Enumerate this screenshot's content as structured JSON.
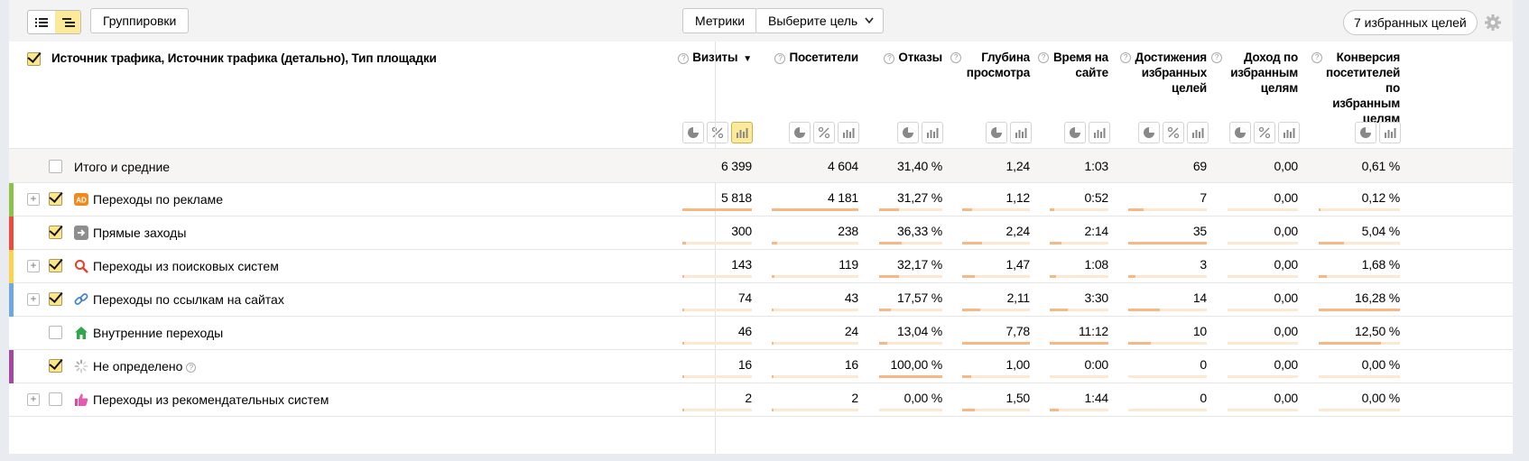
{
  "toolbar": {
    "groupings_label": "Группировки",
    "metrics_label": "Метрики",
    "goal_select_label": "Выберите цель",
    "favorite_goals_label": "7 избранных целей"
  },
  "header": {
    "dimension_title": "Источник трафика, Источник трафика (детально), Тип площадки",
    "sort_arrow": "▼",
    "help_glyph": "?",
    "columns": [
      {
        "label": "Визиты",
        "key": "visits"
      },
      {
        "label": "Посетители",
        "key": "visitors"
      },
      {
        "label": "Отказы",
        "key": "bounces"
      },
      {
        "label": "Глубина просмотра",
        "key": "depth"
      },
      {
        "label": "Время на сайте",
        "key": "time"
      },
      {
        "label": "Достижения избранных целей",
        "key": "goal_reaches"
      },
      {
        "label": "Доход по избранным целям",
        "key": "revenue"
      },
      {
        "label": "Конверсия посетителей по избранным целям",
        "key": "conversion"
      }
    ]
  },
  "total": {
    "label": "Итого и средние",
    "values": [
      "6 399",
      "4 604",
      "31,40 %",
      "1,24",
      "1:03",
      "69",
      "0,00",
      "0,61 %"
    ]
  },
  "rows": [
    {
      "label": "Переходы по рекламе",
      "icon": "ad-icon",
      "color": "#8bc34a",
      "expandable": true,
      "checked": true,
      "values": [
        "5 818",
        "4 181",
        "31,27 %",
        "1,12",
        "0:52",
        "7",
        "0,00",
        "0,12 %"
      ],
      "fill": [
        1.0,
        1.0,
        0.31,
        0.14,
        0.08,
        0.2,
        0,
        0.01
      ]
    },
    {
      "label": "Прямые заходы",
      "icon": "arrow-right-icon",
      "color": "#ef4b3f",
      "expandable": false,
      "checked": true,
      "values": [
        "300",
        "238",
        "36,33 %",
        "2,24",
        "2:14",
        "35",
        "0,00",
        "5,04 %"
      ],
      "fill": [
        0.05,
        0.06,
        0.36,
        0.29,
        0.2,
        1.0,
        0,
        0.31
      ]
    },
    {
      "label": "Переходы из поисковых систем",
      "icon": "search-icon",
      "color": "#fdd34e",
      "expandable": true,
      "checked": true,
      "values": [
        "143",
        "119",
        "32,17 %",
        "1,47",
        "1:08",
        "3",
        "0,00",
        "1,68 %"
      ],
      "fill": [
        0.03,
        0.03,
        0.32,
        0.19,
        0.1,
        0.09,
        0,
        0.1
      ]
    },
    {
      "label": "Переходы по ссылкам на сайтах",
      "icon": "link-icon",
      "color": "#6da8e2",
      "expandable": true,
      "checked": true,
      "values": [
        "74",
        "43",
        "17,57 %",
        "2,11",
        "3:30",
        "14",
        "0,00",
        "16,28 %"
      ],
      "fill": [
        0.02,
        0.01,
        0.18,
        0.27,
        0.31,
        0.4,
        0,
        1.0
      ]
    },
    {
      "label": "Внутренние переходы",
      "icon": "home-icon",
      "color": "",
      "expandable": false,
      "checked": false,
      "values": [
        "46",
        "24",
        "13,04 %",
        "7,78",
        "11:12",
        "10",
        "0,00",
        "12,50 %"
      ],
      "fill": [
        0.01,
        0.01,
        0.13,
        1.0,
        1.0,
        0.29,
        0,
        0.77
      ]
    },
    {
      "label": "Не определено",
      "icon": "spinner-icon",
      "color": "#a349a4",
      "expandable": false,
      "checked": true,
      "help": true,
      "values": [
        "16",
        "16",
        "100,00 %",
        "1,00",
        "0:00",
        "0",
        "0,00",
        "0,00 %"
      ],
      "fill": [
        0.005,
        0.005,
        1.0,
        0.13,
        0,
        0,
        0,
        0
      ]
    },
    {
      "label": "Переходы из рекомендательных систем",
      "icon": "thumbs-up-icon",
      "color": "",
      "expandable": true,
      "checked": false,
      "values": [
        "2",
        "2",
        "0,00 %",
        "1,50",
        "1:44",
        "0",
        "0,00",
        "0,00 %"
      ],
      "fill": [
        0.001,
        0.001,
        0,
        0.19,
        0.15,
        0,
        0,
        0
      ]
    }
  ]
}
